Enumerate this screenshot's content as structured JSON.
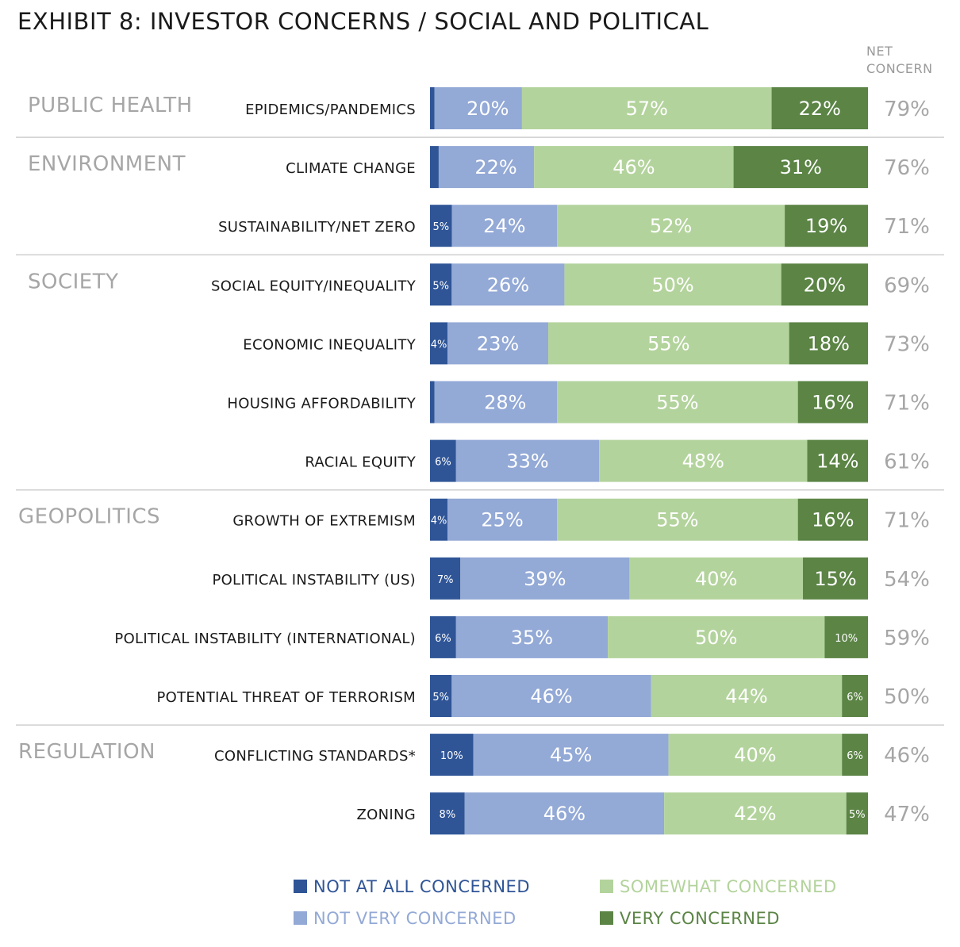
{
  "title": "EXHIBIT 8: INVESTOR CONCERNS / SOCIAL AND POLITICAL",
  "net_header": [
    "NET",
    "CONCERN"
  ],
  "colors": {
    "not_at_all": "#2f5597",
    "not_very": "#93a9d6",
    "somewhat": "#b3d39c",
    "very": "#5b8445",
    "category_text": "#a6a6a6",
    "net_text": "#a6a6a6",
    "divider": "#cfcfcf"
  },
  "legend": [
    {
      "key": "not_at_all",
      "label": "NOT AT ALL CONCERNED"
    },
    {
      "key": "not_very",
      "label": "NOT VERY CONCERNED"
    },
    {
      "key": "somewhat",
      "label": "SOMEWHAT CONCERNED"
    },
    {
      "key": "very",
      "label": "VERY CONCERNED"
    }
  ],
  "chart_data": {
    "type": "bar",
    "orientation": "horizontal",
    "stacked": true,
    "series_names": [
      "NOT AT ALL CONCERNED",
      "NOT VERY CONCERNED",
      "SOMEWHAT CONCERNED",
      "VERY CONCERNED"
    ],
    "groups": [
      {
        "name": "PUBLIC HEALTH",
        "rows": [
          {
            "label": "EPIDEMICS/PANDEMICS",
            "values": [
              1,
              20,
              57,
              22
            ],
            "net": "79%"
          }
        ]
      },
      {
        "name": "ENVIRONMENT",
        "rows": [
          {
            "label": "CLIMATE CHANGE",
            "values": [
              2,
              22,
              46,
              31
            ],
            "net": "76%"
          },
          {
            "label": "SUSTAINABILITY/NET ZERO",
            "values": [
              5,
              24,
              52,
              19
            ],
            "net": "71%"
          }
        ]
      },
      {
        "name": "SOCIETY",
        "rows": [
          {
            "label": "SOCIAL EQUITY/INEQUALITY",
            "values": [
              5,
              26,
              50,
              20
            ],
            "net": "69%"
          },
          {
            "label": "ECONOMIC INEQUALITY",
            "values": [
              4,
              23,
              55,
              18
            ],
            "net": "73%"
          },
          {
            "label": "HOUSING AFFORDABILITY",
            "values": [
              1,
              28,
              55,
              16
            ],
            "net": "71%"
          },
          {
            "label": "RACIAL EQUITY",
            "values": [
              6,
              33,
              48,
              14
            ],
            "net": "61%"
          }
        ]
      },
      {
        "name": "GEOPOLITICS",
        "rows": [
          {
            "label": "GROWTH OF EXTREMISM",
            "values": [
              4,
              25,
              55,
              16
            ],
            "net": "71%"
          },
          {
            "label": "POLITICAL INSTABILITY (US)",
            "values": [
              7,
              39,
              40,
              15
            ],
            "net": "54%"
          },
          {
            "label": "POLITICAL INSTABILITY (INTERNATIONAL)",
            "values": [
              6,
              35,
              50,
              10
            ],
            "net": "59%"
          },
          {
            "label": "POTENTIAL THREAT OF TERRORISM",
            "values": [
              5,
              46,
              44,
              6
            ],
            "net": "50%"
          }
        ]
      },
      {
        "name": "REGULATION",
        "rows": [
          {
            "label": "CONFLICTING STANDARDS*",
            "values": [
              10,
              45,
              40,
              6
            ],
            "net": "46%"
          },
          {
            "label": "ZONING",
            "values": [
              8,
              46,
              42,
              5
            ],
            "net": "47%"
          }
        ]
      }
    ]
  }
}
